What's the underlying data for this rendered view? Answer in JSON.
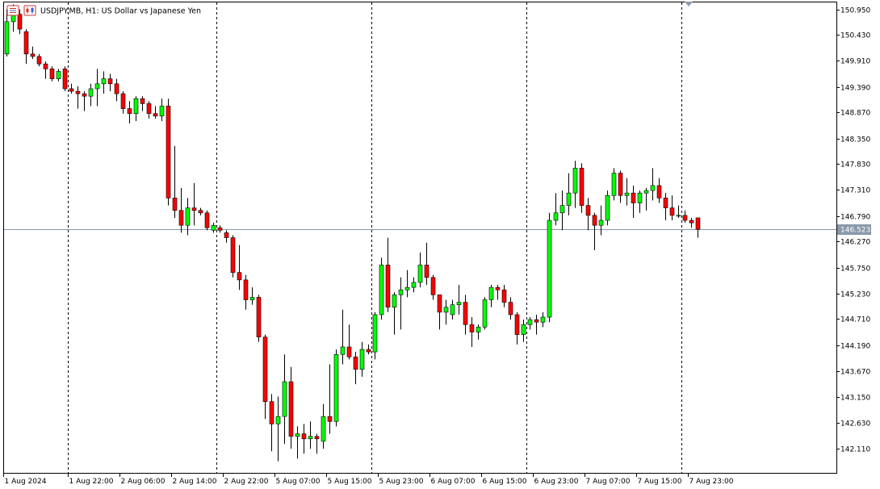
{
  "header": {
    "title": "USDJPY.MB, H1:  US Dollar vs Japanese Yen"
  },
  "colors": {
    "background": "#ffffff",
    "frame": "#000000",
    "bull": "#00ff00",
    "bear": "#ff0000",
    "candle_outline": "#000000",
    "bid_line": "#8899aa",
    "bid_label_bg": "#8899aa",
    "separator": "#000000"
  },
  "chart_data": {
    "type": "candlestick",
    "symbol": "USDJPY.MB",
    "timeframe": "H1",
    "description": "US Dollar vs Japanese Yen",
    "ylim": [
      141.8,
      151.0
    ],
    "y_ticks": [
      "150.950",
      "150.430",
      "149.910",
      "149.390",
      "148.870",
      "148.350",
      "147.830",
      "147.310",
      "146.790",
      "146.270",
      "145.750",
      "145.230",
      "144.710",
      "144.190",
      "143.670",
      "143.150",
      "142.630",
      "142.110"
    ],
    "x_ticks": [
      {
        "index": 0,
        "label": "1 Aug 2024"
      },
      {
        "index": 10,
        "label": "1 Aug 22:00"
      },
      {
        "index": 18,
        "label": "2 Aug 06:00"
      },
      {
        "index": 26,
        "label": "2 Aug 14:00"
      },
      {
        "index": 34,
        "label": "2 Aug 22:00"
      },
      {
        "index": 42,
        "label": "5 Aug 07:00"
      },
      {
        "index": 50,
        "label": "5 Aug 15:00"
      },
      {
        "index": 58,
        "label": "5 Aug 23:00"
      },
      {
        "index": 66,
        "label": "6 Aug 07:00"
      },
      {
        "index": 74,
        "label": "6 Aug 15:00"
      },
      {
        "index": 82,
        "label": "6 Aug 23:00"
      },
      {
        "index": 90,
        "label": "7 Aug 07:00"
      },
      {
        "index": 98,
        "label": "7 Aug 15:00"
      },
      {
        "index": 106,
        "label": "7 Aug 23:00"
      }
    ],
    "day_separators": [
      10,
      33,
      57,
      81,
      105
    ],
    "bid_price": "146.523",
    "candles": [
      {
        "o": 150.05,
        "h": 150.95,
        "l": 150.0,
        "c": 150.7
      },
      {
        "o": 150.7,
        "h": 151.05,
        "l": 150.5,
        "c": 150.85
      },
      {
        "o": 150.85,
        "h": 150.95,
        "l": 150.45,
        "c": 150.55
      },
      {
        "o": 150.5,
        "h": 150.55,
        "l": 149.85,
        "c": 150.05
      },
      {
        "o": 150.05,
        "h": 150.2,
        "l": 149.95,
        "c": 150.0
      },
      {
        "o": 150.0,
        "h": 150.05,
        "l": 149.8,
        "c": 149.85
      },
      {
        "o": 149.85,
        "h": 149.9,
        "l": 149.55,
        "c": 149.75
      },
      {
        "o": 149.75,
        "h": 149.8,
        "l": 149.5,
        "c": 149.55
      },
      {
        "o": 149.55,
        "h": 149.75,
        "l": 149.5,
        "c": 149.7
      },
      {
        "o": 149.75,
        "h": 149.8,
        "l": 149.3,
        "c": 149.35
      },
      {
        "o": 149.35,
        "h": 149.45,
        "l": 149.25,
        "c": 149.3
      },
      {
        "o": 149.3,
        "h": 149.4,
        "l": 148.95,
        "c": 149.25
      },
      {
        "o": 149.25,
        "h": 149.3,
        "l": 148.9,
        "c": 149.2
      },
      {
        "o": 149.2,
        "h": 149.45,
        "l": 149.0,
        "c": 149.35
      },
      {
        "o": 149.35,
        "h": 149.75,
        "l": 149.0,
        "c": 149.45
      },
      {
        "o": 149.45,
        "h": 149.7,
        "l": 149.25,
        "c": 149.55
      },
      {
        "o": 149.55,
        "h": 149.65,
        "l": 149.3,
        "c": 149.45
      },
      {
        "o": 149.45,
        "h": 149.55,
        "l": 149.1,
        "c": 149.25
      },
      {
        "o": 149.25,
        "h": 149.3,
        "l": 148.85,
        "c": 148.95
      },
      {
        "o": 148.95,
        "h": 149.1,
        "l": 148.65,
        "c": 148.85
      },
      {
        "o": 148.85,
        "h": 149.2,
        "l": 148.7,
        "c": 149.15
      },
      {
        "o": 149.15,
        "h": 149.2,
        "l": 148.9,
        "c": 149.05
      },
      {
        "o": 149.05,
        "h": 149.1,
        "l": 148.75,
        "c": 148.85
      },
      {
        "o": 148.85,
        "h": 149.0,
        "l": 148.75,
        "c": 148.8
      },
      {
        "o": 148.8,
        "h": 149.15,
        "l": 148.7,
        "c": 149.0
      },
      {
        "o": 149.0,
        "h": 149.15,
        "l": 147.0,
        "c": 147.15
      },
      {
        "o": 147.15,
        "h": 148.2,
        "l": 146.75,
        "c": 146.9
      },
      {
        "o": 146.9,
        "h": 147.35,
        "l": 146.45,
        "c": 146.6
      },
      {
        "o": 146.6,
        "h": 147.15,
        "l": 146.4,
        "c": 146.95
      },
      {
        "o": 146.95,
        "h": 147.45,
        "l": 146.6,
        "c": 146.9
      },
      {
        "o": 146.9,
        "h": 146.95,
        "l": 146.8,
        "c": 146.85
      },
      {
        "o": 146.85,
        "h": 146.9,
        "l": 146.5,
        "c": 146.55
      },
      {
        "o": 146.5,
        "h": 146.65,
        "l": 146.45,
        "c": 146.6
      },
      {
        "o": 146.55,
        "h": 146.6,
        "l": 146.45,
        "c": 146.5
      },
      {
        "o": 146.45,
        "h": 146.5,
        "l": 146.25,
        "c": 146.35
      },
      {
        "o": 146.35,
        "h": 146.4,
        "l": 145.55,
        "c": 145.65
      },
      {
        "o": 145.65,
        "h": 146.2,
        "l": 145.3,
        "c": 145.5
      },
      {
        "o": 145.5,
        "h": 145.6,
        "l": 144.9,
        "c": 145.1
      },
      {
        "o": 145.1,
        "h": 145.35,
        "l": 145.0,
        "c": 145.15
      },
      {
        "o": 145.15,
        "h": 145.2,
        "l": 144.25,
        "c": 144.35
      },
      {
        "o": 144.35,
        "h": 144.4,
        "l": 142.7,
        "c": 143.05
      },
      {
        "o": 143.05,
        "h": 143.2,
        "l": 142.05,
        "c": 142.6
      },
      {
        "o": 142.6,
        "h": 143.15,
        "l": 141.85,
        "c": 142.75
      },
      {
        "o": 142.75,
        "h": 144.0,
        "l": 142.2,
        "c": 143.45
      },
      {
        "o": 143.45,
        "h": 143.75,
        "l": 142.1,
        "c": 142.35
      },
      {
        "o": 142.35,
        "h": 142.55,
        "l": 141.9,
        "c": 142.4
      },
      {
        "o": 142.4,
        "h": 142.6,
        "l": 142.0,
        "c": 142.3
      },
      {
        "o": 142.3,
        "h": 142.65,
        "l": 142.1,
        "c": 142.35
      },
      {
        "o": 142.35,
        "h": 142.4,
        "l": 142.0,
        "c": 142.3
      },
      {
        "o": 142.25,
        "h": 143.0,
        "l": 142.1,
        "c": 142.75
      },
      {
        "o": 142.75,
        "h": 143.8,
        "l": 142.4,
        "c": 142.65
      },
      {
        "o": 142.65,
        "h": 144.1,
        "l": 142.55,
        "c": 144.0
      },
      {
        "o": 144.0,
        "h": 144.9,
        "l": 143.8,
        "c": 144.15
      },
      {
        "o": 144.15,
        "h": 144.6,
        "l": 143.9,
        "c": 143.95
      },
      {
        "o": 143.95,
        "h": 144.05,
        "l": 143.4,
        "c": 143.7
      },
      {
        "o": 143.7,
        "h": 144.25,
        "l": 143.55,
        "c": 144.1
      },
      {
        "o": 144.1,
        "h": 144.2,
        "l": 144.0,
        "c": 144.05
      },
      {
        "o": 144.05,
        "h": 144.85,
        "l": 143.9,
        "c": 144.8
      },
      {
        "o": 144.8,
        "h": 145.95,
        "l": 144.7,
        "c": 145.8
      },
      {
        "o": 145.8,
        "h": 146.35,
        "l": 144.85,
        "c": 144.95
      },
      {
        "o": 144.95,
        "h": 145.25,
        "l": 144.4,
        "c": 145.2
      },
      {
        "o": 145.2,
        "h": 145.55,
        "l": 144.5,
        "c": 145.3
      },
      {
        "o": 145.3,
        "h": 145.7,
        "l": 145.15,
        "c": 145.35
      },
      {
        "o": 145.35,
        "h": 145.55,
        "l": 145.25,
        "c": 145.45
      },
      {
        "o": 145.45,
        "h": 146.05,
        "l": 145.35,
        "c": 145.8
      },
      {
        "o": 145.8,
        "h": 146.25,
        "l": 145.4,
        "c": 145.55
      },
      {
        "o": 145.55,
        "h": 145.6,
        "l": 145.1,
        "c": 145.2
      },
      {
        "o": 145.2,
        "h": 145.2,
        "l": 144.5,
        "c": 144.85
      },
      {
        "o": 144.85,
        "h": 145.1,
        "l": 144.6,
        "c": 144.95
      },
      {
        "o": 144.8,
        "h": 145.1,
        "l": 144.7,
        "c": 145.0
      },
      {
        "o": 145.0,
        "h": 145.4,
        "l": 144.8,
        "c": 145.05
      },
      {
        "o": 145.05,
        "h": 145.2,
        "l": 144.4,
        "c": 144.6
      },
      {
        "o": 144.6,
        "h": 144.75,
        "l": 144.15,
        "c": 144.45
      },
      {
        "o": 144.45,
        "h": 144.6,
        "l": 144.3,
        "c": 144.55
      },
      {
        "o": 144.55,
        "h": 145.15,
        "l": 144.5,
        "c": 145.1
      },
      {
        "o": 145.1,
        "h": 145.4,
        "l": 144.95,
        "c": 145.35
      },
      {
        "o": 145.35,
        "h": 145.4,
        "l": 145.1,
        "c": 145.3
      },
      {
        "o": 145.3,
        "h": 145.4,
        "l": 144.95,
        "c": 145.05
      },
      {
        "o": 145.05,
        "h": 145.15,
        "l": 144.7,
        "c": 144.8
      },
      {
        "o": 144.8,
        "h": 144.85,
        "l": 144.2,
        "c": 144.4
      },
      {
        "o": 144.4,
        "h": 144.7,
        "l": 144.25,
        "c": 144.6
      },
      {
        "o": 144.6,
        "h": 144.75,
        "l": 144.5,
        "c": 144.7
      },
      {
        "o": 144.7,
        "h": 144.8,
        "l": 144.4,
        "c": 144.65
      },
      {
        "o": 144.65,
        "h": 144.85,
        "l": 144.55,
        "c": 144.75
      },
      {
        "o": 144.75,
        "h": 146.85,
        "l": 144.65,
        "c": 146.7
      },
      {
        "o": 146.7,
        "h": 147.25,
        "l": 146.6,
        "c": 146.85
      },
      {
        "o": 146.85,
        "h": 147.3,
        "l": 146.5,
        "c": 147.0
      },
      {
        "o": 147.0,
        "h": 147.65,
        "l": 146.8,
        "c": 147.25
      },
      {
        "o": 147.25,
        "h": 147.9,
        "l": 146.95,
        "c": 147.75
      },
      {
        "o": 147.75,
        "h": 147.85,
        "l": 146.85,
        "c": 147.0
      },
      {
        "o": 147.0,
        "h": 147.15,
        "l": 146.5,
        "c": 146.8
      },
      {
        "o": 146.8,
        "h": 146.85,
        "l": 146.1,
        "c": 146.6
      },
      {
        "o": 146.6,
        "h": 147.0,
        "l": 146.4,
        "c": 146.7
      },
      {
        "o": 146.7,
        "h": 147.3,
        "l": 146.6,
        "c": 147.2
      },
      {
        "o": 147.2,
        "h": 147.75,
        "l": 147.1,
        "c": 147.65
      },
      {
        "o": 147.65,
        "h": 147.7,
        "l": 147.05,
        "c": 147.2
      },
      {
        "o": 147.2,
        "h": 147.55,
        "l": 147.0,
        "c": 147.25
      },
      {
        "o": 147.25,
        "h": 147.4,
        "l": 146.75,
        "c": 147.05
      },
      {
        "o": 147.05,
        "h": 147.3,
        "l": 146.85,
        "c": 147.25
      },
      {
        "o": 147.25,
        "h": 147.35,
        "l": 146.9,
        "c": 147.3
      },
      {
        "o": 147.3,
        "h": 147.75,
        "l": 147.1,
        "c": 147.4
      },
      {
        "o": 147.4,
        "h": 147.55,
        "l": 147.05,
        "c": 147.15
      },
      {
        "o": 147.15,
        "h": 147.25,
        "l": 146.7,
        "c": 146.95
      },
      {
        "o": 146.95,
        "h": 147.2,
        "l": 146.7,
        "c": 146.8
      },
      {
        "o": 146.8,
        "h": 147.0,
        "l": 146.75,
        "c": 146.8
      },
      {
        "o": 146.8,
        "h": 146.9,
        "l": 146.65,
        "c": 146.7
      },
      {
        "o": 146.7,
        "h": 146.75,
        "l": 146.55,
        "c": 146.65
      },
      {
        "o": 146.75,
        "h": 146.75,
        "l": 146.35,
        "c": 146.52
      }
    ]
  }
}
